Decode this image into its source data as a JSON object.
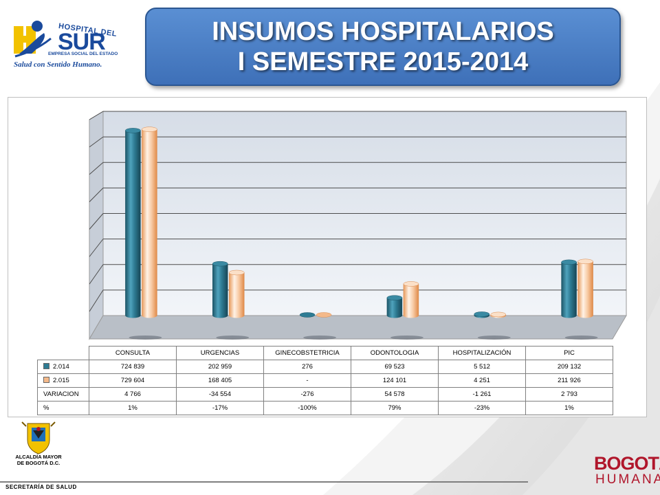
{
  "header": {
    "title_line1": "INSUMOS HOSPITALARIOS",
    "title_line2": "I SEMESTRE  2015-2014"
  },
  "logo": {
    "top": "HOSPITAL DEL",
    "main": "SUR",
    "sub": "EMPRESA SOCIAL DEL ESTADO",
    "slogan": "Salud con Sentido Humano."
  },
  "chart_data": {
    "type": "bar",
    "categories": [
      "CONSULTA",
      "URGENCIAS",
      "GINECOBSTETRICIA",
      "ODONTOLOGIA",
      "HOSPITALIZACIÓN",
      "PIC"
    ],
    "series": [
      {
        "name": "2.014",
        "values": [
          724839,
          202959,
          276,
          69523,
          5512,
          209132
        ],
        "color": "#2e7b93"
      },
      {
        "name": "2.015",
        "values": [
          729604,
          168405,
          0,
          124101,
          4251,
          211926
        ],
        "color": "#f4b98a"
      }
    ],
    "ylim": [
      0,
      800000
    ],
    "grid": true,
    "legend": "table",
    "table": {
      "rows": [
        {
          "label": "2.014",
          "key": "#2e7b93",
          "cells": [
            "724 839",
            "202 959",
            "276",
            "69 523",
            "5 512",
            "209 132"
          ]
        },
        {
          "label": "2.015",
          "key": "#f4b98a",
          "cells": [
            "729 604",
            "168 405",
            "-",
            "124 101",
            "4 251",
            "211 926"
          ]
        },
        {
          "label": "VARIACION",
          "cells": [
            "4 766",
            "-34 554",
            "-276",
            "54 578",
            "-1 261",
            "2 793"
          ]
        },
        {
          "label": "%",
          "cells": [
            "1%",
            "-17%",
            "-100%",
            "79%",
            "-23%",
            "1%"
          ]
        }
      ]
    }
  },
  "footer": {
    "alcaldia_line1": "ALCALDÍA MAYOR",
    "alcaldia_line2": "DE BOGOTÁ D.C.",
    "secretaria": "SECRETARÍA DE SALUD",
    "bogota_top": "BOGOTÁ",
    "bogota_bottom": "HUMANA"
  }
}
